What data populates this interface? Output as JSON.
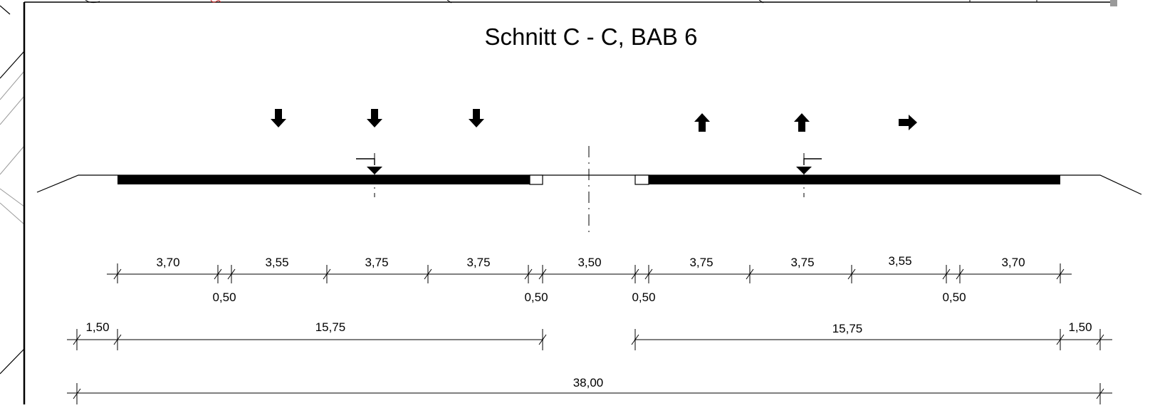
{
  "drawing": {
    "title": "Schnitt C - C, BAB 6",
    "colors": {
      "ink": "#000000",
      "hatch": "#9a9a9a",
      "paper": "#ffffff",
      "redmark": "#cc2222"
    }
  },
  "dimensions": {
    "row1_top": [
      "3,70",
      "3,55",
      "3,75",
      "3,75",
      "3,50",
      "3,75",
      "3,75",
      "3,55",
      "3,70"
    ],
    "row1_bottom": [
      "0,50",
      "0,50",
      "0,50",
      "0,50"
    ],
    "row2": [
      "1,50",
      "15,75",
      "15,75",
      "1,50"
    ],
    "row3_total": "38,00"
  },
  "lane_arrows": {
    "left_carriageway": [
      "arrow-down",
      "arrow-down",
      "arrow-down"
    ],
    "right_carriageway": [
      "arrow-up",
      "arrow-up",
      "arrow-right"
    ]
  }
}
